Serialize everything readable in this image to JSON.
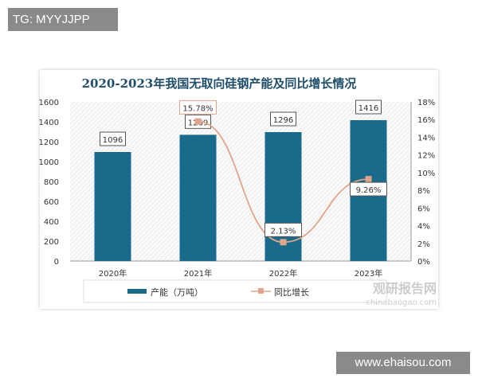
{
  "watermark_top": "TG: MYYJJPP",
  "watermark_bottom": "www.ehaisou.com",
  "logo": {
    "name": "观研报告网",
    "url_text": "chinabaogao.com"
  },
  "chart_data": {
    "type": "bar+line",
    "title": "2020-2023年我国无取向硅钢产能及同比增长情况",
    "categories": [
      "2020年",
      "2021年",
      "2022年",
      "2023年"
    ],
    "series": [
      {
        "name": "产能（万吨）",
        "type": "bar",
        "axis": "left",
        "values": [
          1096,
          1269,
          1296,
          1416
        ],
        "labels": [
          "1096",
          "1269",
          "1296",
          "1416"
        ],
        "color": "#1a6a8c"
      },
      {
        "name": "同比增长",
        "type": "line",
        "axis": "right",
        "values": [
          null,
          15.78,
          2.13,
          9.26
        ],
        "labels": [
          "",
          "15.78%",
          "2.13%",
          "9.26%"
        ],
        "color": "#e0a58a"
      }
    ],
    "y_left": {
      "min": 0,
      "max": 1600,
      "ticks": [
        "0",
        "200",
        "400",
        "600",
        "800",
        "1000",
        "1200",
        "1400",
        "1600"
      ]
    },
    "y_right": {
      "min": 0,
      "max": 18,
      "ticks": [
        "0%",
        "2%",
        "4%",
        "6%",
        "8%",
        "10%",
        "12%",
        "14%",
        "16%",
        "18%"
      ]
    },
    "legend": "bottom",
    "grid": false
  }
}
